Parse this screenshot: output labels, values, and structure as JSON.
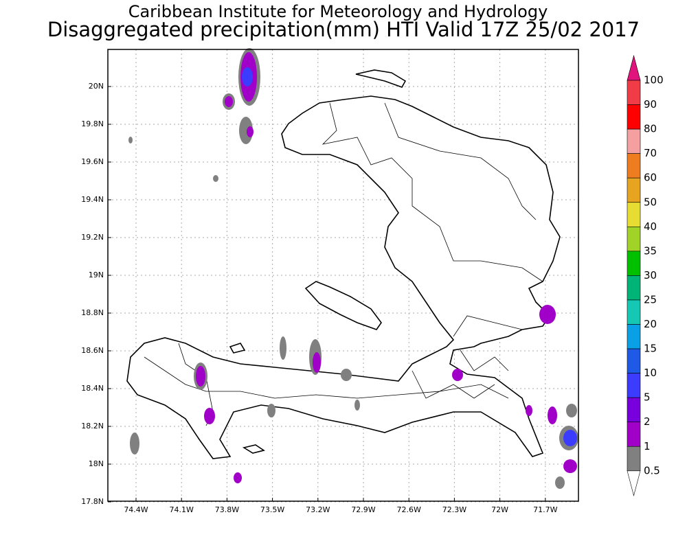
{
  "header": {
    "title": "Caribbean Institute for Meteorology and Hydrology",
    "subtitle": "Disaggregated precipitation(mm) HTI Valid 17Z 25/02 2017"
  },
  "map": {
    "lat_labels": [
      "20N",
      "19.8N",
      "19.6N",
      "19.4N",
      "19.2N",
      "19N",
      "18.8N",
      "18.6N",
      "18.4N",
      "18.2N",
      "18N",
      "17.8N"
    ],
    "lon_labels": [
      "74.4W",
      "74.1W",
      "73.8W",
      "73.5W",
      "73.2W",
      "72.9W",
      "72.6W",
      "72.3W",
      "72W",
      "71.7W"
    ]
  },
  "colorbar": {
    "labels": [
      "100",
      "90",
      "80",
      "70",
      "60",
      "50",
      "40",
      "35",
      "30",
      "25",
      "20",
      "15",
      "10",
      "5",
      "2",
      "1",
      "0.5"
    ],
    "colors": [
      "#e0147c",
      "#f03c46",
      "#ff0000",
      "#f4a0a0",
      "#ee7d20",
      "#e6a420",
      "#e6dc32",
      "#a0d228",
      "#00c000",
      "#00b478",
      "#14c8b4",
      "#0aa0e6",
      "#1e5ae6",
      "#3c3cff",
      "#7800dc",
      "#a000c8",
      "#808080",
      "#ffffff"
    ]
  }
}
